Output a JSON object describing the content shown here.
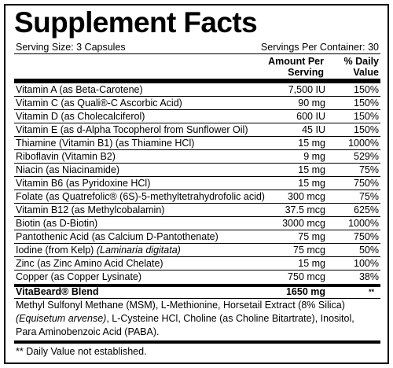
{
  "header": {
    "title": "Supplement Facts",
    "serving_size": "Serving Size: 3 Capsules",
    "servings_per_container": "Servings Per Container: 30"
  },
  "columns": {
    "amount": "Amount Per Serving",
    "daily_value": "% Daily Value"
  },
  "rows": [
    {
      "name": "Vitamin A (as Beta-Carotene)",
      "amount": "7,500 IU",
      "dv": "150%"
    },
    {
      "name": "Vitamin C (as Quali®-C Ascorbic Acid)",
      "amount": "90 mg",
      "dv": "150%"
    },
    {
      "name": "Vitamin D (as Cholecalciferol)",
      "amount": "600 IU",
      "dv": "150%"
    },
    {
      "name": "Vitamin E (as d-Alpha Tocopherol from Sunflower Oil)",
      "amount": "45 IU",
      "dv": "150%"
    },
    {
      "name": "Thiamine (Vitamin B1) (as Thiamine HCl)",
      "amount": "15 mg",
      "dv": "1000%"
    },
    {
      "name": "Riboflavin (Vitamin B2)",
      "amount": "9 mg",
      "dv": "529%"
    },
    {
      "name": "Niacin (as Niacinamide)",
      "amount": "15 mg",
      "dv": "75%"
    },
    {
      "name": "Vitamin B6 (as Pyridoxine HCl)",
      "amount": "15 mg",
      "dv": "750%"
    },
    {
      "name": "Folate (as Quatrefolic® (6S)-5-methyltetrahydrofolic acid)",
      "amount": "300 mcg",
      "dv": "75%"
    },
    {
      "name": "Vitamin B12 (as Methylcobalamin)",
      "amount": "37.5 mcg",
      "dv": "625%"
    },
    {
      "name": "Biotin (as D-Biotin)",
      "amount": "3000 mcg",
      "dv": "1000%"
    },
    {
      "name": "Pantothenic Acid (as Calcium D-Pantothenate)",
      "amount": "75 mg",
      "dv": "750%"
    },
    {
      "name": [
        "Iodine (from Kelp) ",
        "(Laminaria digitata)"
      ],
      "amount": "75 mcg",
      "dv": "50%"
    },
    {
      "name": "Zinc (as Zinc Amino Acid Chelate)",
      "amount": "15 mg",
      "dv": "100%"
    },
    {
      "name": "Copper (as Copper Lysinate)",
      "amount": "750 mcg",
      "dv": "38%"
    }
  ],
  "blend": {
    "name": "VitaBeard® Blend",
    "amount": "1650 mg",
    "dv": "**",
    "description": [
      "Methyl Sulfonyl Methane (MSM), L-Methionine, Horsetail Extract (8% Silica) ",
      "(Equisetum arvense)",
      ", L-Cysteine HCl, Choline (as Choline Bitartrate), Inositol, Para Aminobenzoic Acid (PABA)."
    ]
  },
  "footnote": "** Daily Value not established."
}
